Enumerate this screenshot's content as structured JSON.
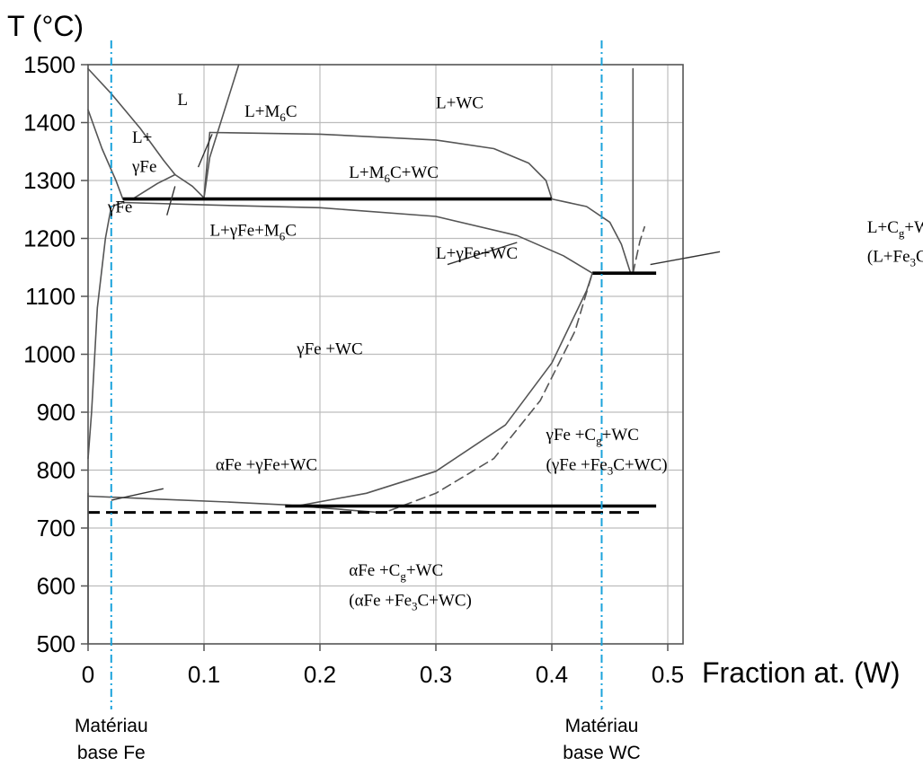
{
  "chart_data": {
    "type": "phase-diagram",
    "title": "",
    "ylabel": "T (°C)",
    "xlabel": "Fraction at. (W)",
    "xlim": [
      0,
      0.5
    ],
    "ylim": [
      500,
      1500
    ],
    "x_ticks": [
      "0",
      "0.1",
      "0.2",
      "0.3",
      "0.4",
      "0.5"
    ],
    "y_ticks": [
      "1500",
      "1400",
      "1300",
      "1200",
      "1100",
      "1000",
      "900",
      "800",
      "700",
      "600",
      "500"
    ],
    "grid": true,
    "colors": {
      "curve": "#555555",
      "thick": "#000000",
      "reference": "#1ba3dc",
      "grid": "#bdbdbd"
    },
    "boundaries": [
      {
        "id": "liquidus-left",
        "style": "solid",
        "points": [
          [
            0,
            1493
          ],
          [
            0.02,
            1450
          ],
          [
            0.045,
            1390
          ],
          [
            0.065,
            1335
          ],
          [
            0.075,
            1310
          ]
        ]
      },
      {
        "id": "liquidus-gfe",
        "style": "solid",
        "points": [
          [
            0,
            1422
          ],
          [
            0.012,
            1355
          ],
          [
            0.024,
            1300
          ],
          [
            0.03,
            1268
          ]
        ]
      },
      {
        "id": "solidus-gfe",
        "style": "solid",
        "points": [
          [
            0.03,
            1262
          ],
          [
            0.02,
            1255
          ],
          [
            0.015,
            1200
          ],
          [
            0.008,
            1080
          ],
          [
            0.003,
            900
          ],
          [
            0,
            820
          ]
        ]
      },
      {
        "id": "l-m6c-left",
        "style": "solid",
        "points": [
          [
            0.075,
            1310
          ],
          [
            0.09,
            1290
          ],
          [
            0.1,
            1270
          ]
        ]
      },
      {
        "id": "l-m6c-right",
        "style": "solid",
        "points": [
          [
            0.1,
            1270
          ],
          [
            0.105,
            1340
          ],
          [
            0.13,
            1500
          ]
        ]
      },
      {
        "id": "l-gfe-m6c-top",
        "style": "solid",
        "points": [
          [
            0.04,
            1270
          ],
          [
            0.06,
            1295
          ],
          [
            0.075,
            1310
          ]
        ]
      },
      {
        "id": "m6c-box-left",
        "style": "solid",
        "points": [
          [
            0.1,
            1270
          ],
          [
            0.105,
            1383
          ]
        ]
      },
      {
        "id": "l-m6c-wc-dome",
        "style": "solid",
        "points": [
          [
            0.105,
            1383
          ],
          [
            0.2,
            1380
          ],
          [
            0.3,
            1370
          ],
          [
            0.35,
            1355
          ],
          [
            0.38,
            1330
          ],
          [
            0.395,
            1300
          ],
          [
            0.4,
            1268
          ]
        ]
      },
      {
        "id": "eutectic-1268",
        "style": "thick",
        "points": [
          [
            0.03,
            1268
          ],
          [
            0.4,
            1268
          ]
        ]
      },
      {
        "id": "three-phase-lower",
        "style": "solid",
        "points": [
          [
            0.03,
            1262
          ],
          [
            0.1,
            1258
          ],
          [
            0.2,
            1253
          ],
          [
            0.3,
            1238
          ],
          [
            0.37,
            1205
          ],
          [
            0.41,
            1170
          ],
          [
            0.435,
            1140
          ]
        ]
      },
      {
        "id": "liquidus-wc-right",
        "style": "solid",
        "points": [
          [
            0.4,
            1268
          ],
          [
            0.43,
            1255
          ],
          [
            0.45,
            1228
          ],
          [
            0.46,
            1190
          ],
          [
            0.468,
            1140
          ]
        ]
      },
      {
        "id": "liquidus-vertical",
        "style": "solid",
        "points": [
          [
            0.47,
            1140
          ],
          [
            0.47,
            1493
          ]
        ]
      },
      {
        "id": "stable-liquidus",
        "style": "dashed",
        "points": [
          [
            0.47,
            1140
          ],
          [
            0.476,
            1195
          ],
          [
            0.48,
            1220
          ]
        ]
      },
      {
        "id": "eutectic-1140",
        "style": "thick",
        "points": [
          [
            0.435,
            1140
          ],
          [
            0.49,
            1140
          ]
        ]
      },
      {
        "id": "solvus-solid",
        "style": "solid",
        "points": [
          [
            0.18,
            738
          ],
          [
            0.24,
            760
          ],
          [
            0.3,
            798
          ],
          [
            0.36,
            878
          ],
          [
            0.4,
            985
          ],
          [
            0.43,
            1110
          ],
          [
            0.435,
            1140
          ]
        ]
      },
      {
        "id": "solvus-dashed",
        "style": "dashed",
        "points": [
          [
            0.26,
            730
          ],
          [
            0.3,
            760
          ],
          [
            0.35,
            820
          ],
          [
            0.39,
            920
          ],
          [
            0.42,
            1040
          ],
          [
            0.435,
            1140
          ]
        ]
      },
      {
        "id": "alpha-gamma-boundary",
        "style": "solid",
        "points": [
          [
            0,
            755
          ],
          [
            0.06,
            750
          ],
          [
            0.12,
            745
          ],
          [
            0.17,
            740
          ],
          [
            0.25,
            727
          ]
        ]
      },
      {
        "id": "eutectoid-738",
        "style": "thick",
        "points": [
          [
            0.17,
            738
          ],
          [
            0.49,
            738
          ]
        ]
      },
      {
        "id": "eutectoid-727-dashed",
        "style": "dashed-thick",
        "points": [
          [
            0,
            727
          ],
          [
            0.48,
            727
          ]
        ]
      },
      {
        "id": "alpha-solvus",
        "style": "solid",
        "points": [
          [
            0,
            500
          ],
          [
            0,
            760
          ]
        ]
      }
    ],
    "reference_lines": [
      {
        "x": 0.02,
        "label": [
          "Matériau",
          "base Fe"
        ]
      },
      {
        "x": 0.443,
        "label": [
          "Matériau",
          "base WC"
        ]
      }
    ],
    "leaders": [
      {
        "from": [
          0.107,
          1380
        ],
        "to": [
          0.095,
          1323
        ]
      },
      {
        "from": [
          0.075,
          1290
        ],
        "to": [
          0.068,
          1240
        ]
      },
      {
        "from": [
          0.37,
          1193
        ],
        "to": [
          0.31,
          1155
        ]
      },
      {
        "from": [
          0.545,
          1177
        ],
        "to": [
          0.485,
          1155
        ]
      },
      {
        "from": [
          0.02,
          748
        ],
        "to": [
          0.065,
          768
        ]
      }
    ],
    "phase_labels": [
      {
        "id": "L",
        "x": 0.077,
        "y": 1430,
        "parts": [
          "L"
        ]
      },
      {
        "id": "L-gFe",
        "x": 0.038,
        "y": 1365,
        "parts": [
          "L+"
        ]
      },
      {
        "id": "gFe-line2",
        "x": 0.038,
        "y": 1315,
        "parts": [
          "γFe"
        ]
      },
      {
        "id": "L-M6C",
        "x": 0.135,
        "y": 1410,
        "parts": [
          "L+M",
          "6",
          "C"
        ]
      },
      {
        "id": "L-WC",
        "x": 0.3,
        "y": 1425,
        "parts": [
          "L+WC"
        ]
      },
      {
        "id": "L-M6C-WC",
        "x": 0.225,
        "y": 1305,
        "parts": [
          "L+M",
          "6",
          "C+WC"
        ]
      },
      {
        "id": "gFe",
        "x": 0.017,
        "y": 1245,
        "parts": [
          "γFe"
        ]
      },
      {
        "id": "L-gFe-M6C",
        "x": 0.105,
        "y": 1205,
        "parts": [
          "L+γFe+M",
          "6",
          "C"
        ]
      },
      {
        "id": "L-gFe-WC",
        "x": 0.3,
        "y": 1165,
        "parts": [
          "L+γFe+WC"
        ]
      },
      {
        "id": "L-Cg-WC",
        "x": 0.672,
        "y": 1210,
        "parts": [
          "L+C",
          "g",
          "+WC"
        ]
      },
      {
        "id": "L-Fe3C-WC",
        "x": 0.672,
        "y": 1160,
        "parts": [
          "(L+Fe",
          "3",
          "C+WC)"
        ]
      },
      {
        "id": "gFe-WC",
        "x": 0.18,
        "y": 1000,
        "parts": [
          "γFe +WC"
        ]
      },
      {
        "id": "gFe-Cg-WC",
        "x": 0.395,
        "y": 852,
        "parts": [
          "γFe +C",
          "g",
          "+WC"
        ]
      },
      {
        "id": "gFe-Fe3C-WC",
        "x": 0.395,
        "y": 800,
        "parts": [
          "(γFe +Fe",
          "3",
          "C+WC)"
        ]
      },
      {
        "id": "aFe-gFe-WC",
        "x": 0.11,
        "y": 800,
        "parts": [
          "αFe +γFe+WC"
        ]
      },
      {
        "id": "aFe-Cg-WC",
        "x": 0.225,
        "y": 618,
        "parts": [
          "αFe +C",
          "g",
          "+WC"
        ]
      },
      {
        "id": "aFe-Fe3C-WC",
        "x": 0.225,
        "y": 566,
        "parts": [
          "(αFe +Fe",
          "3",
          "C+WC)"
        ]
      }
    ]
  }
}
